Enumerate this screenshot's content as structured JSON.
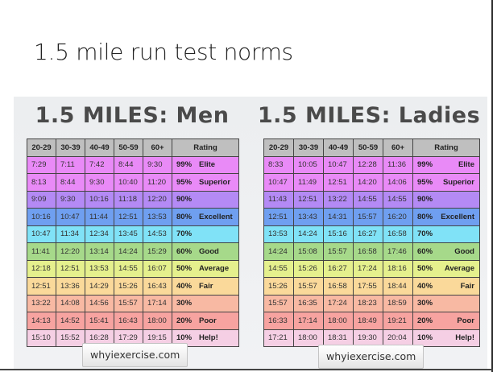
{
  "slide": {
    "title": "1.5 mile run test norms"
  },
  "colors": {
    "header": "#bfbfbf",
    "rows": [
      "#e98af7",
      "#e98af7",
      "#b48af5",
      "#6f9ff0",
      "#80e2f7",
      "#a6d98a",
      "#e5f08d",
      "#fad99a",
      "#f8b9a3",
      "#f7a3a0",
      "#f5cfe4"
    ]
  },
  "men": {
    "title": "1.5 MILES:  Men",
    "headers": [
      "20-29",
      "30-39",
      "40-49",
      "50-59",
      "60+",
      "Rating"
    ],
    "rows": [
      {
        "times": [
          "7:29",
          "7:11",
          "7:42",
          "8:44",
          "9:30"
        ],
        "pct": "99%",
        "label": "Elite"
      },
      {
        "times": [
          "8:13",
          "8:44",
          "9:30",
          "10:40",
          "11:20"
        ],
        "pct": "95%",
        "label": "Superior"
      },
      {
        "times": [
          "9:09",
          "9:30",
          "10:16",
          "11:18",
          "12:20"
        ],
        "pct": "90%",
        "label": ""
      },
      {
        "times": [
          "10:16",
          "10:47",
          "11:44",
          "12:51",
          "13:53"
        ],
        "pct": "80%",
        "label": "Excellent"
      },
      {
        "times": [
          "10:47",
          "11:34",
          "12:34",
          "13:45",
          "14:53"
        ],
        "pct": "70%",
        "label": ""
      },
      {
        "times": [
          "11:41",
          "12:20",
          "13:14",
          "14:24",
          "15:29"
        ],
        "pct": "60%",
        "label": "Good"
      },
      {
        "times": [
          "12:18",
          "12:51",
          "13:53",
          "14:55",
          "16:07"
        ],
        "pct": "50%",
        "label": "Average"
      },
      {
        "times": [
          "12:51",
          "13:36",
          "14:29",
          "15:26",
          "16:43"
        ],
        "pct": "40%",
        "label": "Fair"
      },
      {
        "times": [
          "13:22",
          "14:08",
          "14:56",
          "15:57",
          "17:14"
        ],
        "pct": "30%",
        "label": ""
      },
      {
        "times": [
          "14:13",
          "14:52",
          "15:41",
          "16:43",
          "18:00"
        ],
        "pct": "20%",
        "label": "Poor"
      },
      {
        "times": [
          "15:10",
          "15:52",
          "16:28",
          "17:29",
          "19:15"
        ],
        "pct": "10%",
        "label": "Help!"
      }
    ],
    "source": "whyiexercise.com"
  },
  "ladies": {
    "title": "1.5 MILES:  Ladies",
    "headers": [
      "20-29",
      "30-39",
      "40-49",
      "50-59",
      "60+",
      "Rating"
    ],
    "rows": [
      {
        "times": [
          "8:33",
          "10:05",
          "10:47",
          "12:28",
          "11:36"
        ],
        "pct": "99%",
        "label": "Elite"
      },
      {
        "times": [
          "10:47",
          "11:49",
          "12:51",
          "14:20",
          "14:06"
        ],
        "pct": "95%",
        "label": "Superior"
      },
      {
        "times": [
          "11:43",
          "12:51",
          "13:22",
          "14:55",
          "14:55"
        ],
        "pct": "90%",
        "label": ""
      },
      {
        "times": [
          "12:51",
          "13:43",
          "14:31",
          "15:57",
          "16:20"
        ],
        "pct": "80%",
        "label": "Excellent"
      },
      {
        "times": [
          "13:53",
          "14:24",
          "15:16",
          "16:27",
          "16:58"
        ],
        "pct": "70%",
        "label": ""
      },
      {
        "times": [
          "14:24",
          "15:08",
          "15:57",
          "16:58",
          "17:46"
        ],
        "pct": "60%",
        "label": "Good"
      },
      {
        "times": [
          "14:55",
          "15:26",
          "16:27",
          "17:24",
          "18:16"
        ],
        "pct": "50%",
        "label": "Average"
      },
      {
        "times": [
          "15:26",
          "15:57",
          "16:58",
          "17:55",
          "18:44"
        ],
        "pct": "40%",
        "label": "Fair"
      },
      {
        "times": [
          "15:57",
          "16:35",
          "17:24",
          "18:23",
          "18:59"
        ],
        "pct": "30%",
        "label": ""
      },
      {
        "times": [
          "16:33",
          "17:14",
          "18:00",
          "18:49",
          "19:21"
        ],
        "pct": "20%",
        "label": "Poor"
      },
      {
        "times": [
          "17:21",
          "18:00",
          "18:31",
          "19:30",
          "20:04"
        ],
        "pct": "10%",
        "label": "Help!"
      }
    ],
    "source": "whyiexercise.com"
  }
}
